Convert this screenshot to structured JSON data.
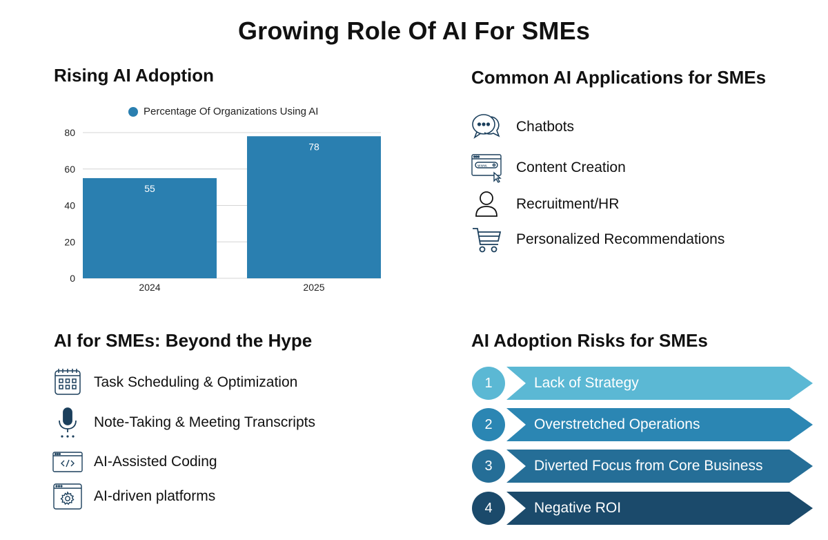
{
  "title": "Growing Role Of AI For SMEs",
  "adoption": {
    "title": "Rising AI Adoption"
  },
  "chart_data": {
    "type": "bar",
    "categories": [
      "2024",
      "2025"
    ],
    "series": [
      {
        "name": "Percentage Of Organizations Using AI",
        "values": [
          55,
          78
        ]
      }
    ],
    "ylim": [
      0,
      80
    ],
    "yticks": [
      0,
      20,
      40,
      60,
      80
    ],
    "grid": true,
    "legend_position": "top",
    "data_labels": [
      "55",
      "78"
    ],
    "color": "#2a7fb0"
  },
  "applications": {
    "title": "Common AI Applications for SMEs",
    "items": [
      {
        "icon": "chat-bubbles-icon",
        "label": "Chatbots"
      },
      {
        "icon": "browser-window-icon",
        "label": "Content Creation"
      },
      {
        "icon": "person-icon",
        "label": "Recruitment/HR"
      },
      {
        "icon": "shopping-cart-icon",
        "label": "Personalized Recommendations"
      }
    ]
  },
  "hype": {
    "title": "AI for SMEs: Beyond the Hype",
    "items": [
      {
        "icon": "calendar-icon",
        "label": "Task Scheduling & Optimization"
      },
      {
        "icon": "microphone-icon",
        "label": "Note-Taking & Meeting Transcripts"
      },
      {
        "icon": "code-window-icon",
        "label": "AI-Assisted Coding"
      },
      {
        "icon": "settings-window-icon",
        "label": "AI-driven platforms"
      }
    ]
  },
  "risks": {
    "title": "AI Adoption Risks for SMEs",
    "items": [
      {
        "num": "1",
        "label": "Lack of Strategy",
        "color": "#5bb8d4"
      },
      {
        "num": "2",
        "label": "Overstretched Operations",
        "color": "#2b86b3"
      },
      {
        "num": "3",
        "label": "Diverted Focus from Core Business",
        "color": "#256e97"
      },
      {
        "num": "4",
        "label": "Negative ROI",
        "color": "#1b4a6b"
      }
    ]
  }
}
